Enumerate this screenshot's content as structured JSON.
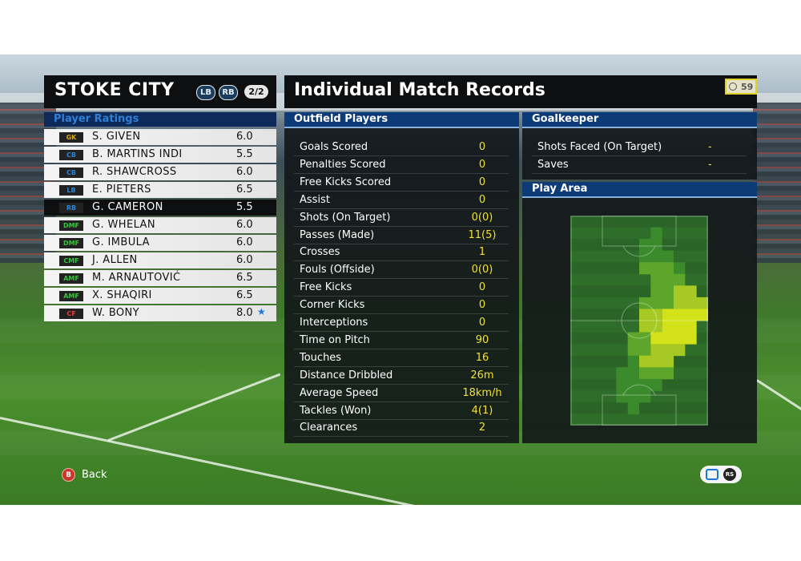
{
  "team": {
    "name": "STOKE CITY",
    "positions": [
      "LB",
      "RB"
    ],
    "page": "2/2"
  },
  "ratings_header": "Player Ratings",
  "players": [
    {
      "pos": "GK",
      "pos_color": "#d3a81a",
      "name": "S. GIVEN",
      "rating": "6.0",
      "star": ""
    },
    {
      "pos": "CB",
      "pos_color": "#2a86d6",
      "name": "B. MARTINS INDI",
      "rating": "5.5",
      "star": ""
    },
    {
      "pos": "CB",
      "pos_color": "#2a86d6",
      "name": "R. SHAWCROSS",
      "rating": "6.0",
      "star": ""
    },
    {
      "pos": "LB",
      "pos_color": "#2a86d6",
      "name": "E. PIETERS",
      "rating": "6.5",
      "star": ""
    },
    {
      "pos": "RB",
      "pos_color": "#2a86d6",
      "name": "G. CAMERON",
      "rating": "5.5",
      "star": "",
      "selected": true
    },
    {
      "pos": "DMF",
      "pos_color": "#3cc040",
      "name": "G. WHELAN",
      "rating": "6.0",
      "star": ""
    },
    {
      "pos": "DMF",
      "pos_color": "#3cc040",
      "name": "G. IMBULA",
      "rating": "6.0",
      "star": ""
    },
    {
      "pos": "CMF",
      "pos_color": "#3cc040",
      "name": "J. ALLEN",
      "rating": "6.0",
      "star": ""
    },
    {
      "pos": "AMF",
      "pos_color": "#3cc040",
      "name": "M. ARNAUTOVIĆ",
      "rating": "6.5",
      "star": ""
    },
    {
      "pos": "AMF",
      "pos_color": "#3cc040",
      "name": "X. SHAQIRI",
      "rating": "6.5",
      "star": ""
    },
    {
      "pos": "CF",
      "pos_color": "#e0413c",
      "name": "W. BONY",
      "rating": "8.0",
      "star": "★"
    }
  ],
  "records": {
    "title": "Individual Match Records",
    "timer": "59",
    "outfield_header": "Outfield Players",
    "outfield": [
      {
        "label": "Goals Scored",
        "value": "0"
      },
      {
        "label": "Penalties Scored",
        "value": "0"
      },
      {
        "label": "Free Kicks Scored",
        "value": "0"
      },
      {
        "label": "Assist",
        "value": "0"
      },
      {
        "label": "Shots (On Target)",
        "value": "0(0)"
      },
      {
        "label": "Passes (Made)",
        "value": "11(5)"
      },
      {
        "label": "Crosses",
        "value": "1"
      },
      {
        "label": "Fouls (Offside)",
        "value": "0(0)"
      },
      {
        "label": "Free Kicks",
        "value": "0"
      },
      {
        "label": "Corner Kicks",
        "value": "0"
      },
      {
        "label": "Interceptions",
        "value": "0"
      },
      {
        "label": "Time on Pitch",
        "value": "90"
      },
      {
        "label": "Touches",
        "value": "16"
      },
      {
        "label": "Distance Dribbled",
        "value": "26m"
      },
      {
        "label": "Average Speed",
        "value": "18km/h"
      },
      {
        "label": "Tackles (Won)",
        "value": "4(1)"
      },
      {
        "label": "Clearances",
        "value": "2"
      }
    ],
    "goalkeeper_header": "Goalkeeper",
    "goalkeeper": [
      {
        "label": "Shots Faced (On Target)",
        "value": "-"
      },
      {
        "label": "Saves",
        "value": "-"
      }
    ],
    "play_area_header": "Play Area"
  },
  "footer": {
    "back_label": "Back",
    "back_key": "B",
    "rs_key": "RS"
  },
  "colors": {
    "stat_value": "#f1e133",
    "header_blue": "#0d3b78",
    "heat_high": "#d4e21a",
    "pitch": "#2f6e2a"
  }
}
